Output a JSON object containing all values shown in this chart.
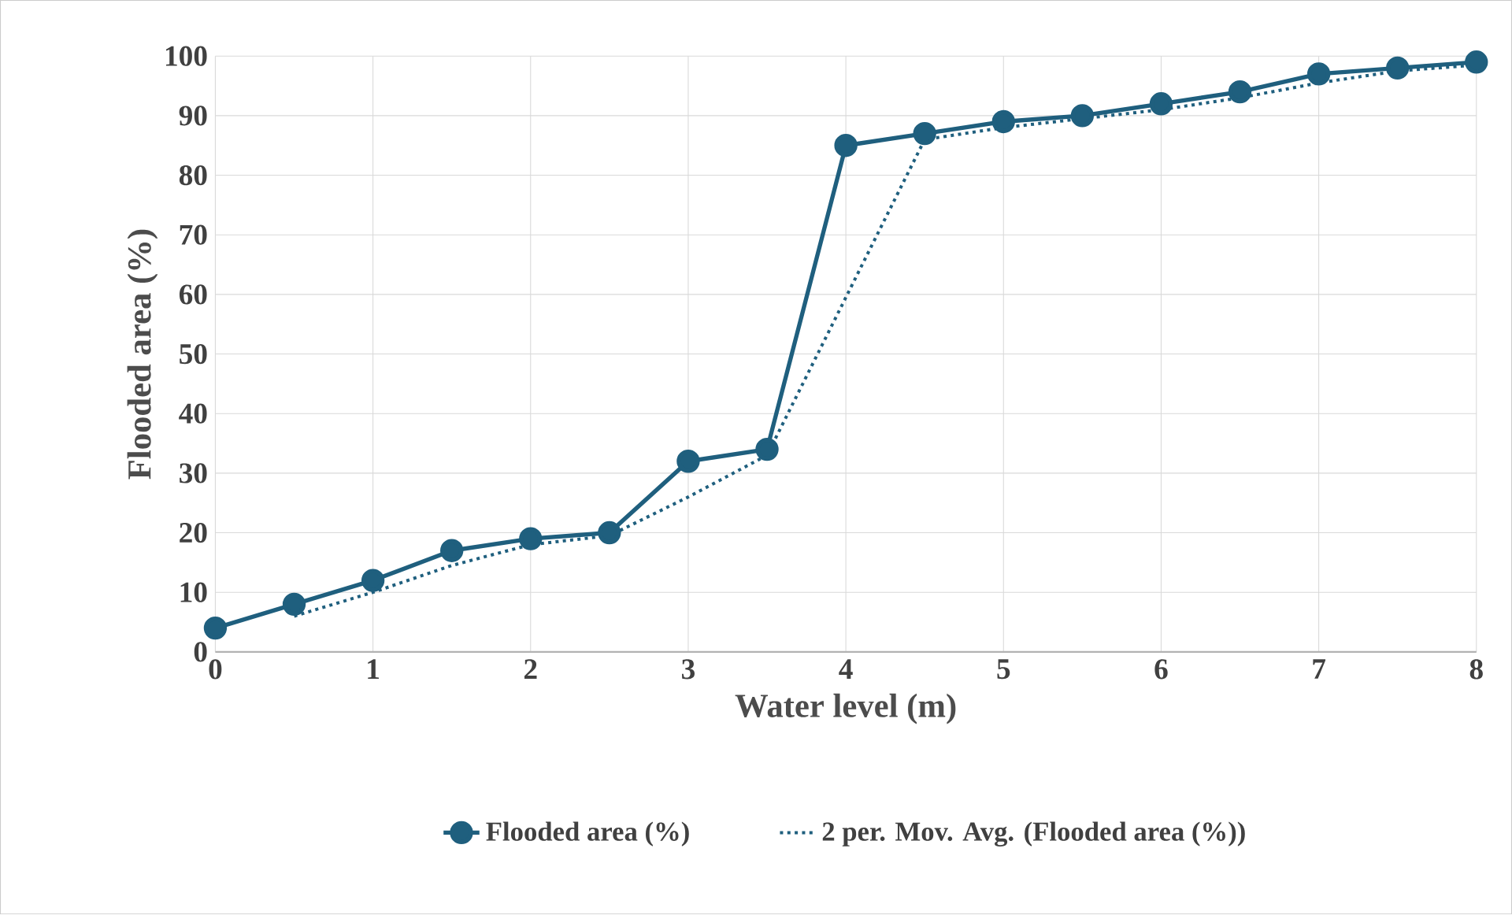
{
  "chart_data": {
    "type": "line",
    "xlabel": "Water level (m)",
    "ylabel": "Flooded area (%)",
    "xlim": [
      0,
      8
    ],
    "xticks": [
      0,
      1,
      2,
      3,
      4,
      5,
      6,
      7,
      8
    ],
    "ylim": [
      0,
      100
    ],
    "yticks": [
      0,
      10,
      20,
      30,
      40,
      50,
      60,
      70,
      80,
      90,
      100
    ],
    "grid": true,
    "legend": "bottom",
    "series": [
      {
        "name": "Flooded area (%)",
        "color": "#1f5f7e",
        "marker": "circle",
        "line_style": "solid",
        "x": [
          0,
          0.5,
          1,
          1.5,
          2,
          2.5,
          3,
          3.5,
          4,
          4.5,
          5,
          5.5,
          6,
          6.5,
          7,
          7.5,
          8
        ],
        "values": [
          4,
          8,
          12,
          17,
          19,
          20,
          32,
          34,
          85,
          87,
          89,
          90,
          92,
          94,
          97,
          98,
          99
        ]
      },
      {
        "name": "2 per. Mov. Avg. (Flooded area (%))",
        "color": "#1f5f7e",
        "marker": "none",
        "line_style": "dotted",
        "x": [
          0.5,
          1,
          1.5,
          2,
          2.5,
          3,
          3.5,
          4,
          4.5,
          5,
          5.5,
          6,
          6.5,
          7,
          7.5,
          8
        ],
        "values": [
          6,
          10,
          14.5,
          18,
          19.5,
          26,
          33,
          59.5,
          86,
          88,
          89.5,
          91,
          93,
          95.5,
          97.5,
          98.5
        ]
      }
    ]
  }
}
